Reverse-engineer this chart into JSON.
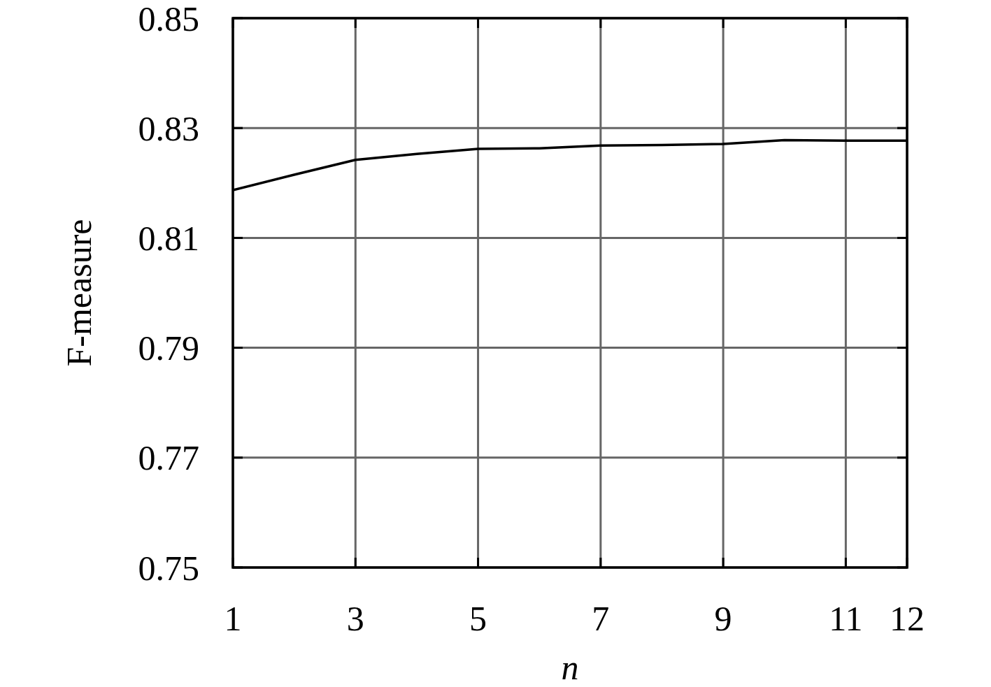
{
  "chart_data": {
    "type": "line",
    "xlabel": "n",
    "ylabel": "F-measure",
    "x": [
      1,
      2,
      3,
      4,
      5,
      6,
      7,
      8,
      9,
      10,
      11,
      12
    ],
    "series": [
      {
        "color": "#000000",
        "values": [
          0.8187,
          0.8215,
          0.8242,
          0.8253,
          0.8262,
          0.8263,
          0.8268,
          0.8269,
          0.8271,
          0.8278,
          0.8277,
          0.8277
        ]
      }
    ],
    "xlim": [
      1,
      12
    ],
    "xticks": [
      1,
      3,
      5,
      7,
      9,
      11,
      12
    ],
    "ylim": [
      0.75,
      0.85
    ],
    "yticks": [
      0.75,
      0.77,
      0.79,
      0.81,
      0.83,
      0.85
    ],
    "grid": true,
    "marker": "none",
    "line_style": "solid"
  }
}
